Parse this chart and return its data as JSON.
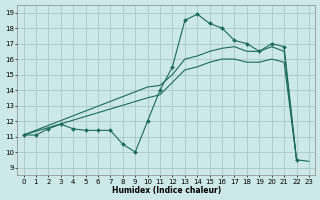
{
  "xlabel": "Humidex (Indice chaleur)",
  "bg_color": "#cce8e8",
  "grid_color": "#aac8c8",
  "line_color": "#1a6b5a",
  "xlim": [
    -0.5,
    23.5
  ],
  "ylim": [
    8.5,
    19.5
  ],
  "xticks": [
    0,
    1,
    2,
    3,
    4,
    5,
    6,
    7,
    8,
    9,
    10,
    11,
    12,
    13,
    14,
    15,
    16,
    17,
    18,
    19,
    20,
    21,
    22,
    23
  ],
  "yticks": [
    9,
    10,
    11,
    12,
    13,
    14,
    15,
    16,
    17,
    18,
    19
  ],
  "series": [
    {
      "x": [
        0,
        1,
        2,
        3,
        4,
        5,
        6,
        7,
        8,
        9,
        10,
        11,
        12,
        13,
        14,
        15,
        16,
        17,
        18,
        19,
        20,
        21,
        22
      ],
      "y": [
        11.1,
        11.1,
        11.5,
        11.8,
        11.5,
        11.4,
        11.4,
        11.4,
        10.5,
        10.0,
        12.0,
        14.0,
        15.5,
        18.5,
        18.9,
        18.3,
        18.0,
        17.2,
        17.0,
        16.5,
        17.0,
        16.8,
        9.5
      ],
      "marker": "D",
      "markersize": 2.0,
      "lw": 0.8
    },
    {
      "x": [
        0,
        10,
        11,
        12,
        13,
        14,
        15,
        16,
        17,
        18,
        19,
        20,
        21,
        22
      ],
      "y": [
        11.1,
        14.2,
        14.3,
        15.0,
        16.0,
        16.2,
        16.5,
        16.7,
        16.8,
        16.5,
        16.5,
        16.8,
        16.5,
        9.5
      ],
      "marker": null,
      "lw": 0.8
    },
    {
      "x": [
        0,
        10,
        11,
        12,
        13,
        14,
        15,
        16,
        17,
        18,
        19,
        20,
        21,
        22,
        23
      ],
      "y": [
        11.1,
        13.5,
        13.7,
        14.5,
        15.3,
        15.5,
        15.8,
        16.0,
        16.0,
        15.8,
        15.8,
        16.0,
        15.8,
        9.5,
        9.4
      ],
      "marker": null,
      "lw": 0.8
    }
  ]
}
